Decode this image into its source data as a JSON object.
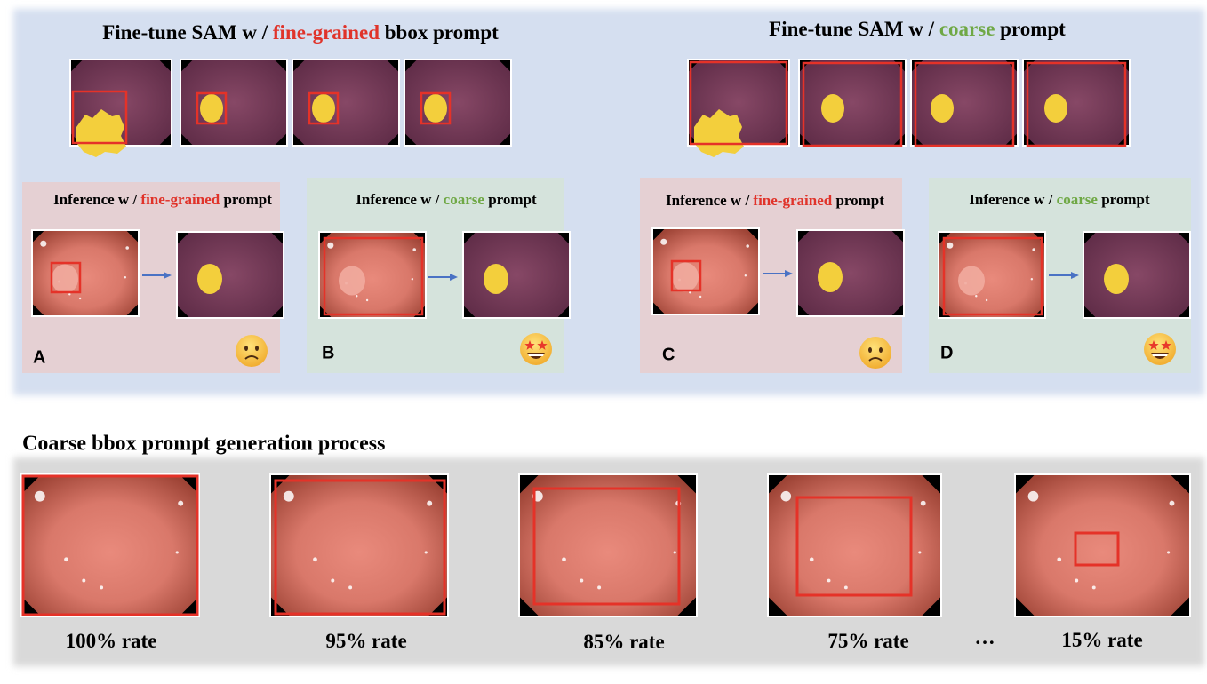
{
  "finetune_fine": {
    "title": {
      "prefix": "Fine-tune SAM w /",
      "highlight": "fine-grained",
      "suffix": "bbox prompt"
    }
  },
  "finetune_coarse": {
    "title": {
      "prefix": "Fine-tune SAM w /",
      "highlight": "coarse",
      "suffix": "prompt"
    }
  },
  "panels": [
    {
      "label": "A",
      "title": {
        "prefix": "Inference w /",
        "highlight": "fine-grained",
        "suffix": "prompt"
      }
    },
    {
      "label": "B",
      "title": {
        "prefix": "Inference w /",
        "highlight": "coarse",
        "suffix": "prompt"
      }
    },
    {
      "label": "C",
      "title": {
        "prefix": "Inference w /",
        "highlight": "fine-grained",
        "suffix": "prompt"
      }
    },
    {
      "label": "D",
      "title": {
        "prefix": "Inference w /",
        "highlight": "coarse",
        "suffix": "prompt"
      }
    }
  ],
  "generation": {
    "title": "Coarse bbox prompt generation process",
    "rates": [
      "100% rate",
      "95% rate",
      "85% rate",
      "75% rate",
      "15% rate"
    ],
    "ellipsis": "…"
  }
}
